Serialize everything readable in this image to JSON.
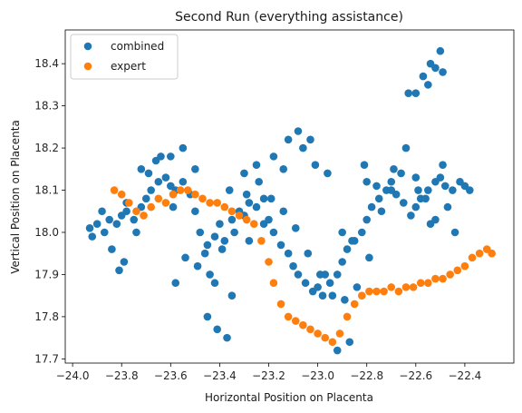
{
  "chart_data": {
    "type": "scatter",
    "title": "Second Run (everything assistance)",
    "xlabel": "Horizontal Position on Placenta",
    "ylabel": "Vertical Position on Placenta",
    "xlim": [
      -24.03,
      -22.2
    ],
    "ylim": [
      17.69,
      18.48
    ],
    "xticks": [
      -24.0,
      -23.8,
      -23.6,
      -23.4,
      -23.2,
      -23.0,
      -22.8,
      -22.6,
      -22.4
    ],
    "xtick_labels": [
      "−24.0",
      "−23.8",
      "−23.6",
      "−23.4",
      "−23.2",
      "−23.0",
      "−22.8",
      "−22.6",
      "−22.4"
    ],
    "yticks": [
      17.7,
      17.8,
      17.9,
      18.0,
      18.1,
      18.2,
      18.3,
      18.4
    ],
    "ytick_labels": [
      "17.7",
      "17.8",
      "17.9",
      "18.0",
      "18.1",
      "18.2",
      "18.3",
      "18.4"
    ],
    "grid": false,
    "legend": "top-left",
    "series": [
      {
        "name": "combined",
        "color": "#1f77b4",
        "x": [
          -23.93,
          -23.9,
          -23.87,
          -23.85,
          -23.82,
          -23.8,
          -23.78,
          -23.75,
          -23.72,
          -23.7,
          -23.68,
          -23.65,
          -23.62,
          -23.6,
          -23.58,
          -23.55,
          -23.52,
          -23.5,
          -23.48,
          -23.45,
          -23.42,
          -23.4,
          -23.38,
          -23.35,
          -23.32,
          -23.3,
          -23.28,
          -23.25,
          -23.22,
          -23.2,
          -23.18,
          -23.15,
          -23.12,
          -23.1,
          -23.08,
          -23.05,
          -23.02,
          -23.0,
          -22.98,
          -22.95,
          -22.92,
          -22.9,
          -22.88,
          -22.85,
          -22.82,
          -22.8,
          -22.78,
          -22.75,
          -22.72,
          -22.7,
          -22.68,
          -22.65,
          -22.62,
          -22.6,
          -22.58,
          -22.55,
          -22.52,
          -22.5,
          -22.48,
          -22.45,
          -22.42,
          -22.4,
          -22.38,
          -23.92,
          -23.88,
          -23.84,
          -23.79,
          -23.74,
          -23.69,
          -23.64,
          -23.59,
          -23.54,
          -23.49,
          -23.44,
          -23.39,
          -23.34,
          -23.29,
          -23.24,
          -23.19,
          -23.14,
          -23.09,
          -23.04,
          -22.99,
          -22.94,
          -22.89,
          -22.84,
          -22.79,
          -22.74,
          -22.69,
          -22.64,
          -22.59,
          -22.54,
          -22.49,
          -22.44,
          -23.78,
          -23.72,
          -23.66,
          -23.6,
          -23.55,
          -23.5,
          -23.46,
          -23.42,
          -23.36,
          -23.3,
          -23.25,
          -23.18,
          -23.12,
          -23.06,
          -23.01,
          -22.96,
          -22.9,
          -22.86,
          -22.8,
          -22.76,
          -22.7,
          -22.66,
          -22.6,
          -22.56,
          -22.52,
          -22.47,
          -23.81,
          -23.58,
          -23.45,
          -23.41,
          -23.37,
          -23.35,
          -23.28,
          -23.22,
          -23.14,
          -23.08,
          -23.03,
          -22.97,
          -22.92,
          -22.87,
          -22.81,
          -22.63,
          -22.6,
          -22.57,
          -22.54,
          -22.52,
          -22.5,
          -22.49,
          -22.55
        ],
        "y": [
          18.01,
          18.02,
          18.0,
          18.03,
          18.02,
          18.04,
          18.05,
          18.03,
          18.06,
          18.08,
          18.1,
          18.12,
          18.13,
          18.11,
          18.1,
          18.12,
          18.09,
          18.05,
          18.0,
          17.97,
          17.99,
          18.02,
          17.98,
          18.03,
          18.05,
          18.04,
          18.07,
          18.06,
          18.02,
          18.03,
          18.0,
          17.97,
          17.95,
          17.92,
          17.9,
          17.88,
          17.86,
          17.87,
          17.85,
          17.88,
          17.9,
          17.93,
          17.96,
          17.98,
          18.0,
          18.03,
          18.06,
          18.08,
          18.1,
          18.12,
          18.09,
          18.07,
          18.04,
          18.06,
          18.08,
          18.1,
          18.12,
          18.13,
          18.11,
          18.1,
          18.12,
          18.11,
          18.1,
          17.99,
          18.05,
          17.96,
          17.93,
          18.0,
          18.14,
          18.18,
          18.06,
          17.94,
          17.92,
          17.9,
          17.96,
          18.0,
          18.09,
          18.12,
          18.08,
          18.05,
          18.01,
          17.95,
          17.9,
          17.85,
          17.84,
          17.87,
          17.94,
          18.05,
          18.15,
          18.2,
          18.1,
          18.02,
          18.16,
          18.0,
          18.07,
          18.15,
          18.17,
          18.18,
          18.2,
          18.15,
          17.95,
          17.88,
          18.1,
          18.14,
          18.16,
          18.18,
          18.22,
          18.2,
          18.16,
          18.14,
          18.0,
          17.98,
          18.12,
          18.11,
          18.1,
          18.14,
          18.13,
          18.08,
          18.03,
          18.06,
          17.91,
          17.88,
          17.8,
          17.77,
          17.75,
          17.85,
          17.98,
          18.08,
          18.15,
          18.24,
          18.22,
          17.9,
          17.72,
          17.74,
          18.16,
          18.33,
          18.33,
          18.37,
          18.4,
          18.39,
          18.43,
          18.38,
          18.35
        ]
      },
      {
        "name": "expert",
        "color": "#ff7f0e",
        "x": [
          -23.83,
          -23.8,
          -23.77,
          -23.74,
          -23.71,
          -23.68,
          -23.65,
          -23.62,
          -23.59,
          -23.56,
          -23.53,
          -23.5,
          -23.47,
          -23.44,
          -23.41,
          -23.38,
          -23.35,
          -23.32,
          -23.29,
          -23.26,
          -23.23,
          -23.2,
          -23.18,
          -23.15,
          -23.12,
          -23.09,
          -23.06,
          -23.03,
          -23.0,
          -22.97,
          -22.94,
          -22.91,
          -22.88,
          -22.85,
          -22.82,
          -22.79,
          -22.76,
          -22.73,
          -22.7,
          -22.67,
          -22.64,
          -22.61,
          -22.58,
          -22.55,
          -22.52,
          -22.49,
          -22.46,
          -22.43,
          -22.4,
          -22.37,
          -22.34,
          -22.31,
          -22.29
        ],
        "y": [
          18.1,
          18.09,
          18.07,
          18.05,
          18.04,
          18.06,
          18.08,
          18.07,
          18.09,
          18.1,
          18.1,
          18.09,
          18.08,
          18.07,
          18.07,
          18.06,
          18.05,
          18.04,
          18.03,
          18.02,
          17.98,
          17.93,
          17.88,
          17.83,
          17.8,
          17.79,
          17.78,
          17.77,
          17.76,
          17.75,
          17.74,
          17.76,
          17.8,
          17.83,
          17.85,
          17.86,
          17.86,
          17.86,
          17.87,
          17.86,
          17.87,
          17.87,
          17.88,
          17.88,
          17.89,
          17.89,
          17.9,
          17.91,
          17.92,
          17.94,
          17.95,
          17.96,
          17.95
        ]
      }
    ]
  }
}
